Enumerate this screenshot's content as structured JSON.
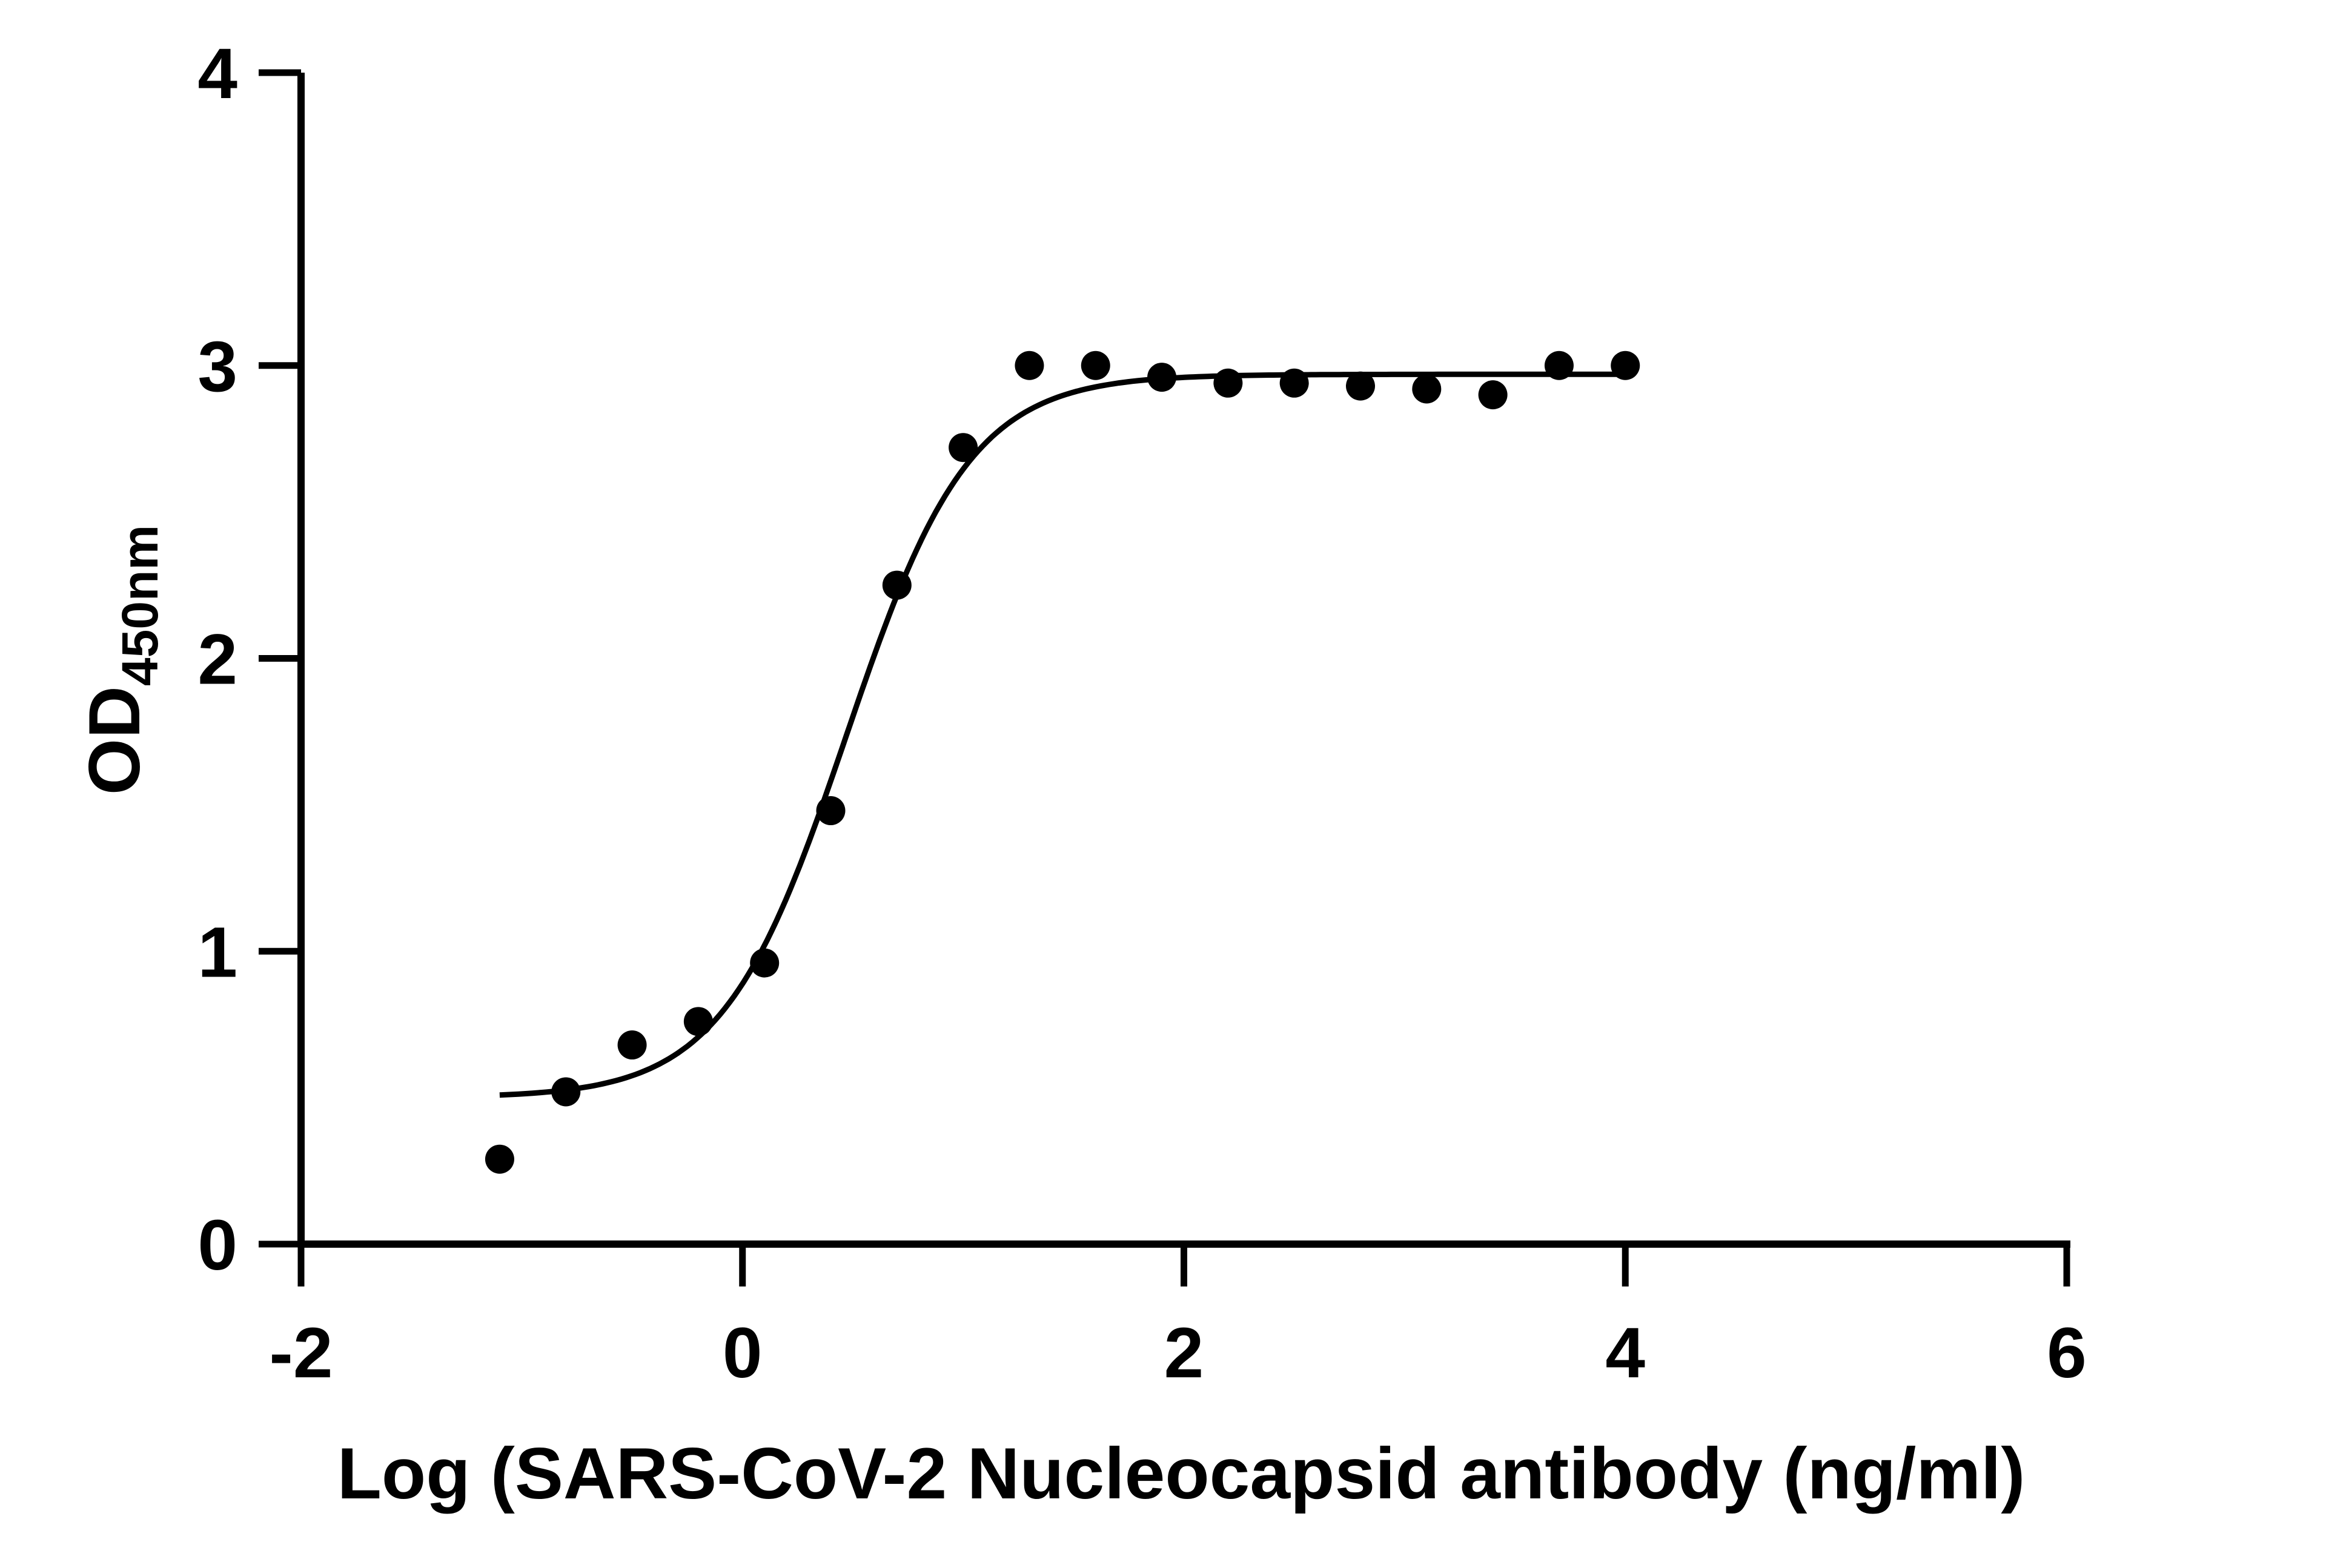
{
  "chart_data": {
    "type": "scatter",
    "xlabel": "Log (SARS-CoV-2 Nucleocapsid antibody (ng/ml)",
    "ylabel": {
      "main": "OD",
      "subscript": "450nm"
    },
    "xlim": [
      -2,
      6
    ],
    "ylim": [
      0,
      4
    ],
    "x_ticks": [
      -2,
      0,
      2,
      4,
      6
    ],
    "y_ticks": [
      0,
      1,
      2,
      3,
      4
    ],
    "grid": false,
    "colors": {
      "axis": "#000000",
      "points": "#000000",
      "curve": "#000000"
    },
    "points": [
      {
        "x": -1.1,
        "y": 0.29
      },
      {
        "x": -0.8,
        "y": 0.52
      },
      {
        "x": -0.5,
        "y": 0.68
      },
      {
        "x": -0.2,
        "y": 0.76
      },
      {
        "x": 0.1,
        "y": 0.96
      },
      {
        "x": 0.4,
        "y": 1.48
      },
      {
        "x": 0.7,
        "y": 2.25
      },
      {
        "x": 1.0,
        "y": 2.72
      },
      {
        "x": 1.3,
        "y": 3.0
      },
      {
        "x": 1.6,
        "y": 3.0
      },
      {
        "x": 1.9,
        "y": 2.96
      },
      {
        "x": 2.2,
        "y": 2.94
      },
      {
        "x": 2.5,
        "y": 2.94
      },
      {
        "x": 2.8,
        "y": 2.93
      },
      {
        "x": 3.1,
        "y": 2.92
      },
      {
        "x": 3.4,
        "y": 2.9
      },
      {
        "x": 3.7,
        "y": 3.0
      },
      {
        "x": 4.0,
        "y": 3.0
      }
    ],
    "fit_curve": {
      "model": "sigmoidal",
      "bottom": 0.5,
      "top": 2.97,
      "log_ec50": 0.47,
      "hill_slope": 1.55,
      "x_range": [
        -1.1,
        4.0
      ]
    }
  }
}
